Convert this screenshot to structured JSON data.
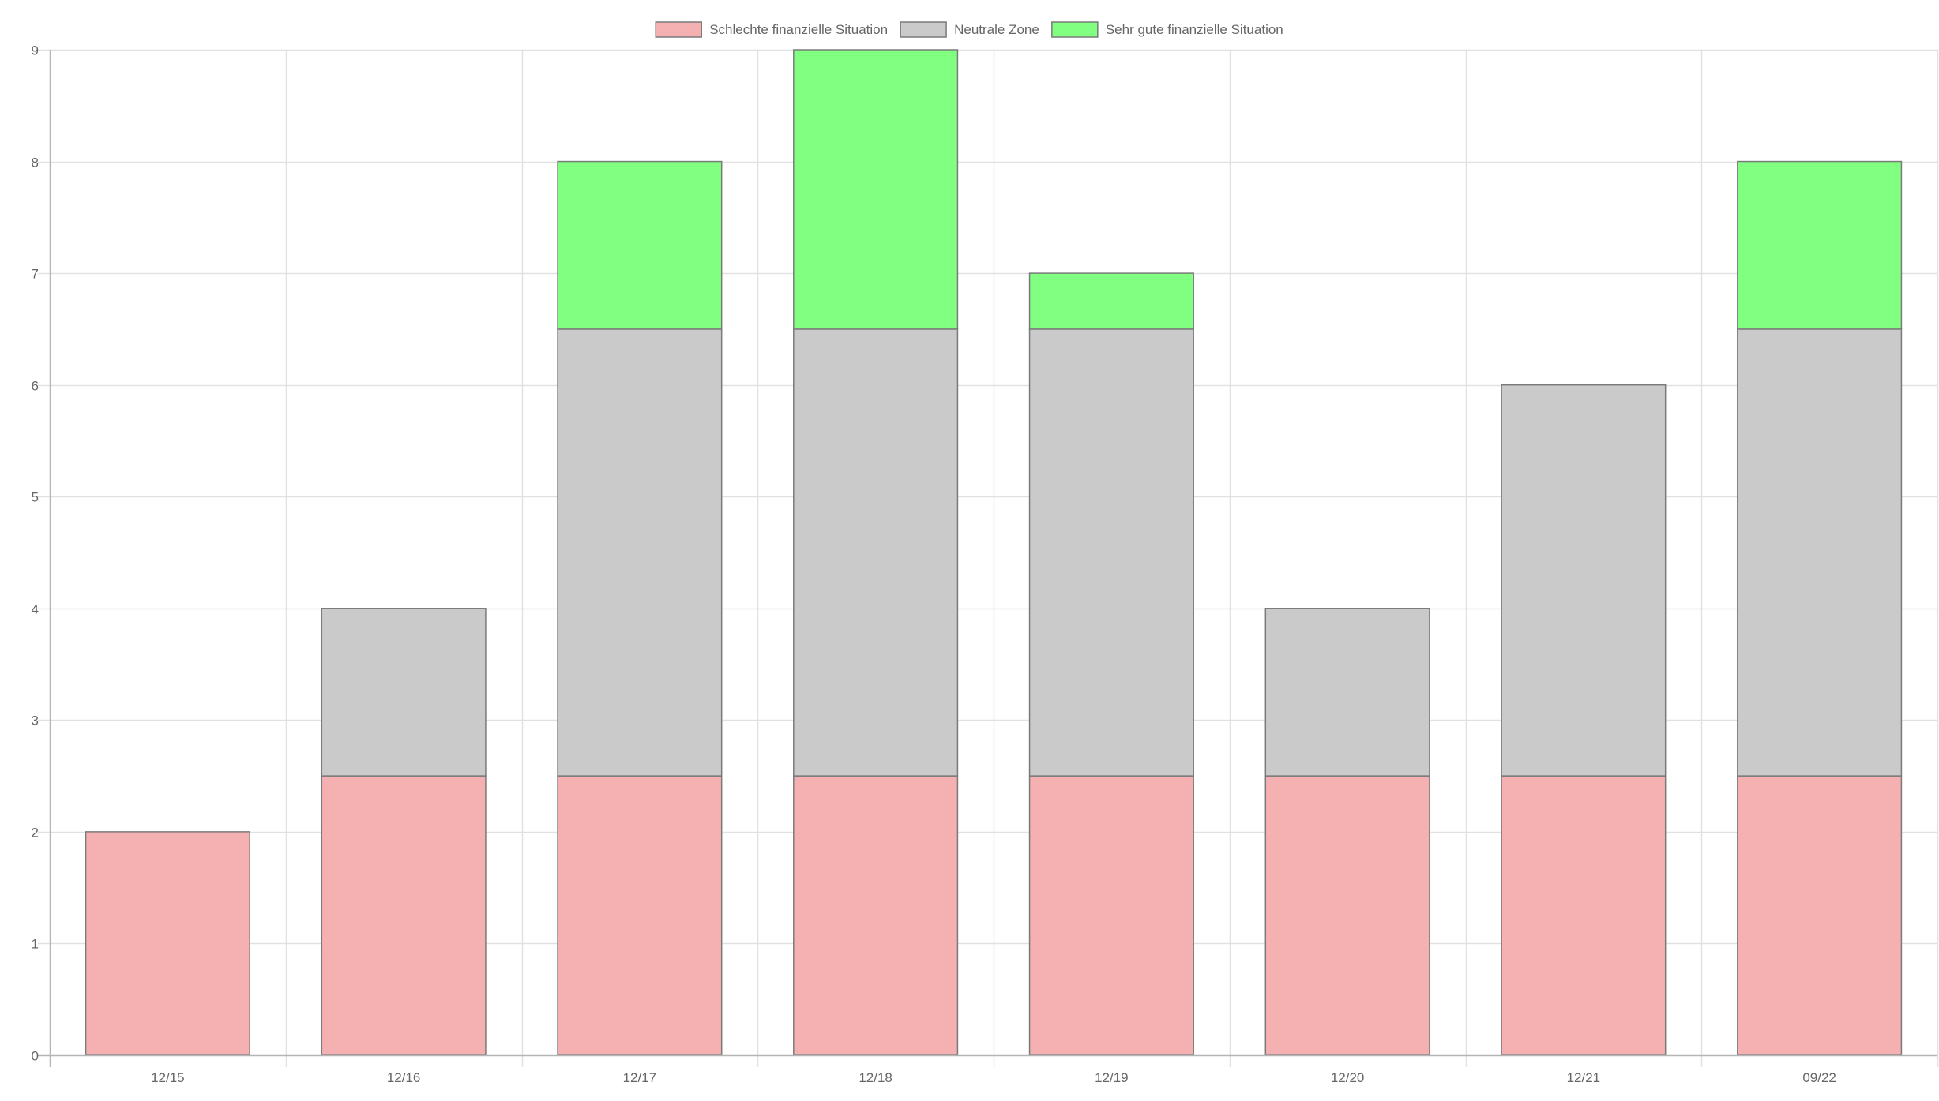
{
  "chart_data": {
    "type": "bar",
    "stacked": true,
    "title": "",
    "xlabel": "",
    "ylabel": "",
    "categories": [
      "12/15",
      "12/16",
      "12/17",
      "12/18",
      "12/19",
      "12/20",
      "12/21",
      "09/22"
    ],
    "ylim": [
      0,
      9
    ],
    "yticks": [
      0,
      1,
      2,
      3,
      4,
      5,
      6,
      7,
      8,
      9
    ],
    "grid": true,
    "legend_position": "top-center",
    "series": [
      {
        "name": "Schlechte finanzielle Situation",
        "values": [
          2,
          2.5,
          2.5,
          2.5,
          2.5,
          2.5,
          2.5,
          2.5
        ],
        "color": "#f5b0b2"
      },
      {
        "name": "Neutrale Zone",
        "values": [
          0,
          1.5,
          4,
          4,
          4,
          1.5,
          3.5,
          4
        ],
        "color": "#cacaca"
      },
      {
        "name": "Sehr gute finanzielle Situation",
        "values": [
          0,
          0,
          1.5,
          2.5,
          0.5,
          0,
          0,
          1.5
        ],
        "color": "#80ff80"
      }
    ],
    "border_color": "#7a7a7a",
    "grid_color": "#e1e1e1",
    "axis_color": "#b5b5b5",
    "tick_label_color": "#666666"
  }
}
